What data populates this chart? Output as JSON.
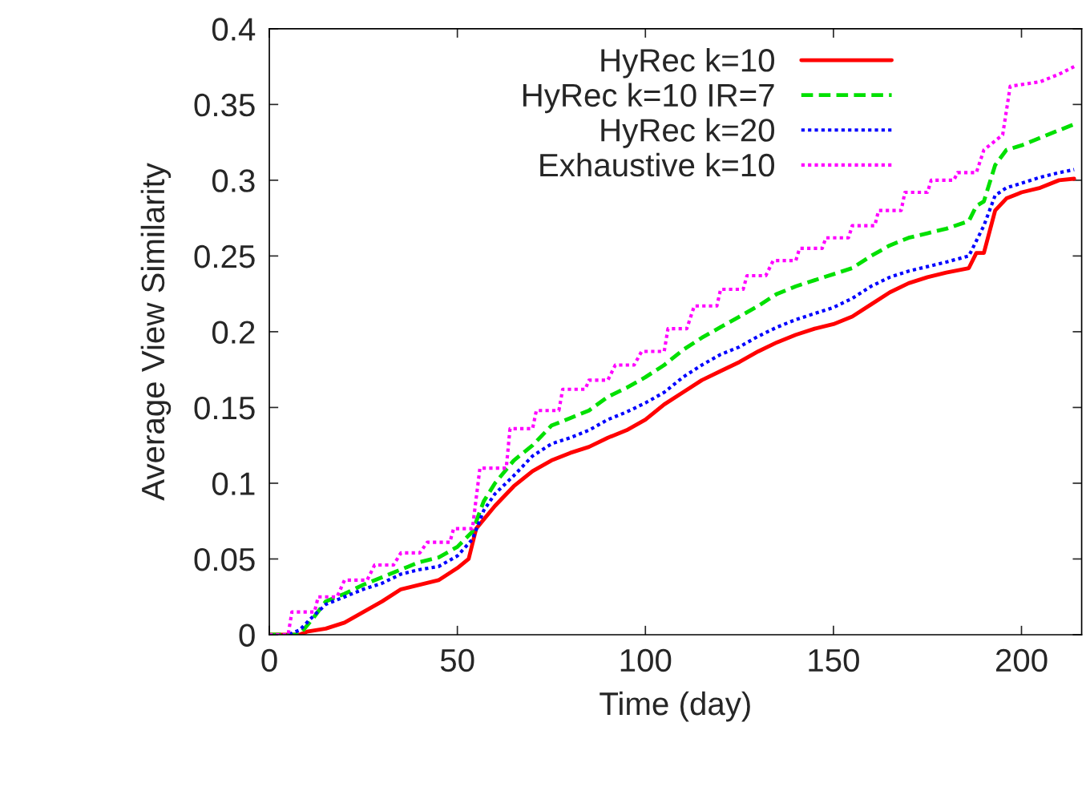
{
  "chart_data": {
    "type": "line",
    "xlabel": "Time (day)",
    "ylabel": "Average View Similarity",
    "xlim": [
      0,
      216
    ],
    "ylim": [
      0,
      0.4
    ],
    "xticks": [
      0,
      50,
      100,
      150,
      200
    ],
    "yticks": [
      0,
      0.05,
      0.1,
      0.15,
      0.2,
      0.25,
      0.3,
      0.35,
      0.4
    ],
    "grid": false,
    "legend": "top right",
    "marker": "none",
    "series": [
      {
        "name": "HyRec k=10",
        "color": "#ff0000",
        "line_style": "solid",
        "x": [
          0,
          8,
          10,
          15,
          20,
          25,
          30,
          35,
          40,
          45,
          50,
          53,
          55,
          60,
          65,
          70,
          75,
          80,
          85,
          90,
          95,
          100,
          105,
          110,
          115,
          120,
          125,
          130,
          135,
          140,
          145,
          150,
          155,
          160,
          165,
          170,
          175,
          180,
          186,
          188,
          190,
          193,
          196,
          200,
          205,
          210,
          214
        ],
        "values": [
          0,
          0,
          0.002,
          0.004,
          0.008,
          0.015,
          0.022,
          0.03,
          0.033,
          0.036,
          0.044,
          0.05,
          0.07,
          0.085,
          0.098,
          0.108,
          0.115,
          0.12,
          0.124,
          0.13,
          0.135,
          0.142,
          0.152,
          0.16,
          0.168,
          0.174,
          0.18,
          0.187,
          0.193,
          0.198,
          0.202,
          0.205,
          0.21,
          0.218,
          0.226,
          0.232,
          0.236,
          0.239,
          0.242,
          0.252,
          0.252,
          0.28,
          0.288,
          0.292,
          0.295,
          0.3,
          0.301
        ]
      },
      {
        "name": "HyRec k=10 IR=7",
        "color": "#00e000",
        "line_style": "dashed",
        "x": [
          0,
          8,
          12,
          15,
          20,
          25,
          30,
          35,
          40,
          45,
          50,
          54,
          57,
          60,
          65,
          70,
          75,
          80,
          85,
          90,
          95,
          100,
          105,
          110,
          115,
          120,
          125,
          130,
          135,
          140,
          145,
          150,
          155,
          160,
          165,
          170,
          175,
          180,
          186,
          188,
          190,
          193,
          196,
          200,
          205,
          210,
          214
        ],
        "values": [
          0,
          0,
          0.012,
          0.022,
          0.027,
          0.033,
          0.038,
          0.043,
          0.048,
          0.051,
          0.058,
          0.068,
          0.088,
          0.1,
          0.115,
          0.125,
          0.138,
          0.143,
          0.148,
          0.157,
          0.163,
          0.17,
          0.178,
          0.188,
          0.196,
          0.203,
          0.21,
          0.217,
          0.225,
          0.23,
          0.234,
          0.238,
          0.242,
          0.25,
          0.257,
          0.262,
          0.265,
          0.268,
          0.273,
          0.283,
          0.286,
          0.31,
          0.32,
          0.323,
          0.328,
          0.333,
          0.337
        ]
      },
      {
        "name": "HyRec k=20",
        "color": "#0000ff",
        "line_style": "dotted",
        "x": [
          0,
          5,
          8,
          12,
          15,
          20,
          25,
          30,
          35,
          40,
          45,
          50,
          54,
          57,
          60,
          65,
          70,
          75,
          80,
          85,
          90,
          95,
          100,
          105,
          110,
          115,
          120,
          125,
          130,
          135,
          140,
          145,
          150,
          155,
          160,
          165,
          170,
          175,
          180,
          186,
          188,
          190,
          193,
          196,
          200,
          205,
          210,
          214
        ],
        "values": [
          0,
          0,
          0.003,
          0.013,
          0.02,
          0.025,
          0.03,
          0.034,
          0.04,
          0.043,
          0.045,
          0.052,
          0.063,
          0.082,
          0.093,
          0.105,
          0.118,
          0.126,
          0.13,
          0.135,
          0.142,
          0.147,
          0.153,
          0.16,
          0.17,
          0.178,
          0.185,
          0.19,
          0.197,
          0.203,
          0.208,
          0.212,
          0.216,
          0.222,
          0.23,
          0.236,
          0.24,
          0.243,
          0.246,
          0.25,
          0.26,
          0.27,
          0.29,
          0.295,
          0.298,
          0.302,
          0.305,
          0.307
        ]
      },
      {
        "name": "Exhaustive k=10",
        "color": "#ff00ff",
        "line_style": "dotted",
        "x": [
          0,
          5,
          6,
          12,
          13,
          18,
          20,
          26,
          28,
          33,
          35,
          40,
          42,
          48,
          49,
          54,
          56,
          63,
          64,
          70,
          71,
          77,
          78,
          84,
          85,
          90,
          92,
          97,
          99,
          105,
          106,
          111,
          113,
          119,
          120,
          126,
          127,
          132,
          134,
          140,
          141,
          147,
          148,
          154,
          155,
          161,
          162,
          168,
          169,
          175,
          176,
          182,
          183,
          188,
          190,
          195,
          197,
          205,
          210,
          214
        ],
        "values": [
          0,
          0,
          0.015,
          0.015,
          0.025,
          0.025,
          0.036,
          0.036,
          0.046,
          0.046,
          0.054,
          0.054,
          0.061,
          0.061,
          0.07,
          0.07,
          0.11,
          0.11,
          0.136,
          0.136,
          0.148,
          0.148,
          0.162,
          0.162,
          0.168,
          0.168,
          0.178,
          0.178,
          0.187,
          0.187,
          0.202,
          0.202,
          0.217,
          0.217,
          0.228,
          0.228,
          0.237,
          0.237,
          0.247,
          0.247,
          0.255,
          0.255,
          0.262,
          0.262,
          0.27,
          0.27,
          0.28,
          0.28,
          0.292,
          0.292,
          0.3,
          0.3,
          0.305,
          0.305,
          0.32,
          0.33,
          0.362,
          0.365,
          0.37,
          0.375
        ]
      }
    ]
  }
}
